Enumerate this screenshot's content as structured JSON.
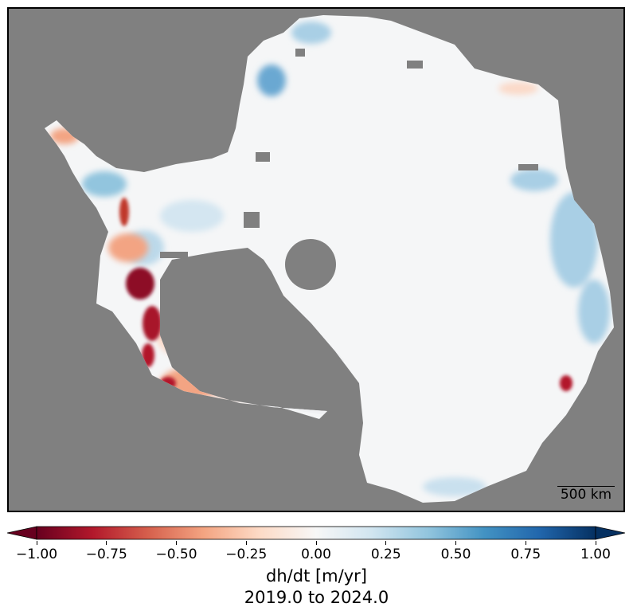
{
  "map": {
    "background_color": "#808080",
    "continent_base_color": "#f5f6f7",
    "scale_bar_label": "500 km"
  },
  "colorbar": {
    "colormap": "RdBu",
    "range": [
      -1.0,
      1.0
    ],
    "extend": "both",
    "tick_labels": [
      "−1.00",
      "−0.75",
      "−0.50",
      "−0.25",
      "0.00",
      "0.25",
      "0.50",
      "0.75",
      "1.00"
    ],
    "label": "dh/dt [m/yr]",
    "sublabel": "2019.0 to 2024.0",
    "colors": [
      "#67001f",
      "#b2182b",
      "#d6604d",
      "#f4a582",
      "#fddbc7",
      "#f7f7f7",
      "#d1e5f0",
      "#92c5de",
      "#4393c3",
      "#2166ac",
      "#053061"
    ]
  }
}
